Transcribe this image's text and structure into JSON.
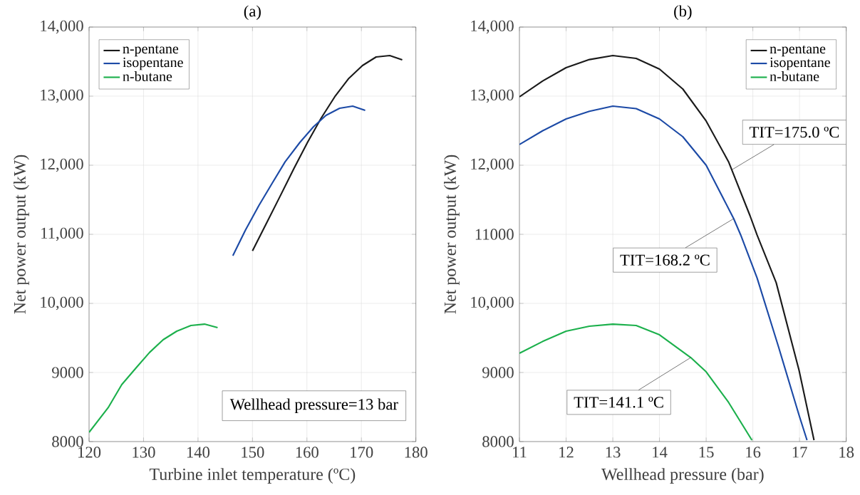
{
  "chart_data": [
    {
      "type": "line",
      "title": "(a)",
      "xlabel": "Turbine inlet temperature (ºC)",
      "ylabel": "Net power output (kW)",
      "series": [
        {
          "name": "n-pentane",
          "color": "#1a1a1a",
          "x": [
            150,
            152.5,
            155,
            157.6,
            160.1,
            162.6,
            165.1,
            167.7,
            170.2,
            172.7,
            175.2,
            177.5
          ],
          "values": [
            10760,
            11150,
            11540,
            11950,
            12330,
            12680,
            12990,
            13258,
            13443,
            13567,
            13588,
            13526
          ]
        },
        {
          "name": "isopentane",
          "color": "#1c4aa6",
          "x": [
            146.4,
            148.7,
            151.2,
            153.7,
            156.0,
            158.7,
            161.2,
            163.5,
            166.0,
            168.4,
            170.7
          ],
          "values": [
            10690,
            11060,
            11420,
            11750,
            12050,
            12330,
            12557,
            12722,
            12825,
            12856,
            12794
          ]
        },
        {
          "name": "n-butane",
          "color": "#1cb04c",
          "x": [
            120,
            123.5,
            126,
            128.8,
            131.1,
            133.6,
            136.1,
            138.7,
            141.2,
            143.6
          ],
          "values": [
            8134,
            8490,
            8825,
            9082,
            9290,
            9474,
            9598,
            9680,
            9700,
            9650
          ]
        }
      ],
      "xlim": [
        120,
        180
      ],
      "ylim": [
        8000,
        14000
      ],
      "xticks": [
        120,
        130,
        140,
        150,
        160,
        170,
        180
      ],
      "yticks": [
        8000,
        9000,
        {
          "value": 10000,
          "label": "10,000"
        },
        {
          "value": 11000,
          "label": "11,000"
        },
        {
          "value": 12000,
          "label": "12,000"
        },
        {
          "value": 13000,
          "label": "13,000"
        },
        {
          "value": 14000,
          "label": "14,000"
        }
      ],
      "grid": true,
      "legend": "top left",
      "annotations": [
        "Wellhead pressure=13 bar"
      ]
    },
    {
      "type": "line",
      "title": "(b)",
      "xlabel": "Wellhead pressure (bar)",
      "ylabel": "Net power output (kW)",
      "series": [
        {
          "name": "n-pentane",
          "color": "#1a1a1a",
          "x": [
            11,
            11.5,
            12,
            12.5,
            13,
            13.5,
            14,
            14.5,
            15,
            15.48,
            15.94,
            16.09,
            16.5,
            16.99,
            17.31
          ],
          "values": [
            12990,
            13220,
            13412,
            13530,
            13588,
            13546,
            13392,
            13103,
            12640,
            12050,
            11268,
            10990,
            10300,
            9030,
            8020
          ]
        },
        {
          "name": "isopentane",
          "color": "#1c4aa6",
          "x": [
            11,
            11.5,
            12,
            12.5,
            13,
            13.5,
            14,
            14.5,
            15,
            15.59,
            15.74,
            16.09,
            16.55,
            16.99,
            17.16
          ],
          "values": [
            12300,
            12500,
            12670,
            12780,
            12856,
            12820,
            12670,
            12412,
            12000,
            11227,
            10990,
            10370,
            9371,
            8381,
            8020
          ]
        },
        {
          "name": "n-butane",
          "color": "#1cb04c",
          "x": [
            11,
            11.5,
            12,
            12.5,
            13,
            13.5,
            14,
            14.67,
            15,
            15.48,
            15.98
          ],
          "values": [
            9278,
            9450,
            9598,
            9670,
            9700,
            9680,
            9546,
            9216,
            9010,
            8567,
            8020
          ]
        }
      ],
      "xlim": [
        11,
        18
      ],
      "ylim": [
        8000,
        14000
      ],
      "xticks": [
        11,
        12,
        13,
        14,
        15,
        16,
        17,
        18
      ],
      "yticks": [
        8000,
        9000,
        {
          "value": 10000,
          "label": "10,000"
        },
        11000,
        {
          "value": 12000,
          "label": "12,000"
        },
        {
          "value": 13000,
          "label": "13,000"
        },
        {
          "value": 14000,
          "label": "14,000"
        }
      ],
      "grid": true,
      "legend": "top right",
      "annotations": [
        {
          "text": "TIT=175.0 ºC",
          "x": 15.56,
          "y": 11938
        },
        {
          "text": "TIT=168.2 ºC",
          "x": 15.59,
          "y": 11227
        },
        {
          "text": "TIT=141.1 ºC",
          "x": 14.67,
          "y": 9216
        }
      ]
    }
  ]
}
